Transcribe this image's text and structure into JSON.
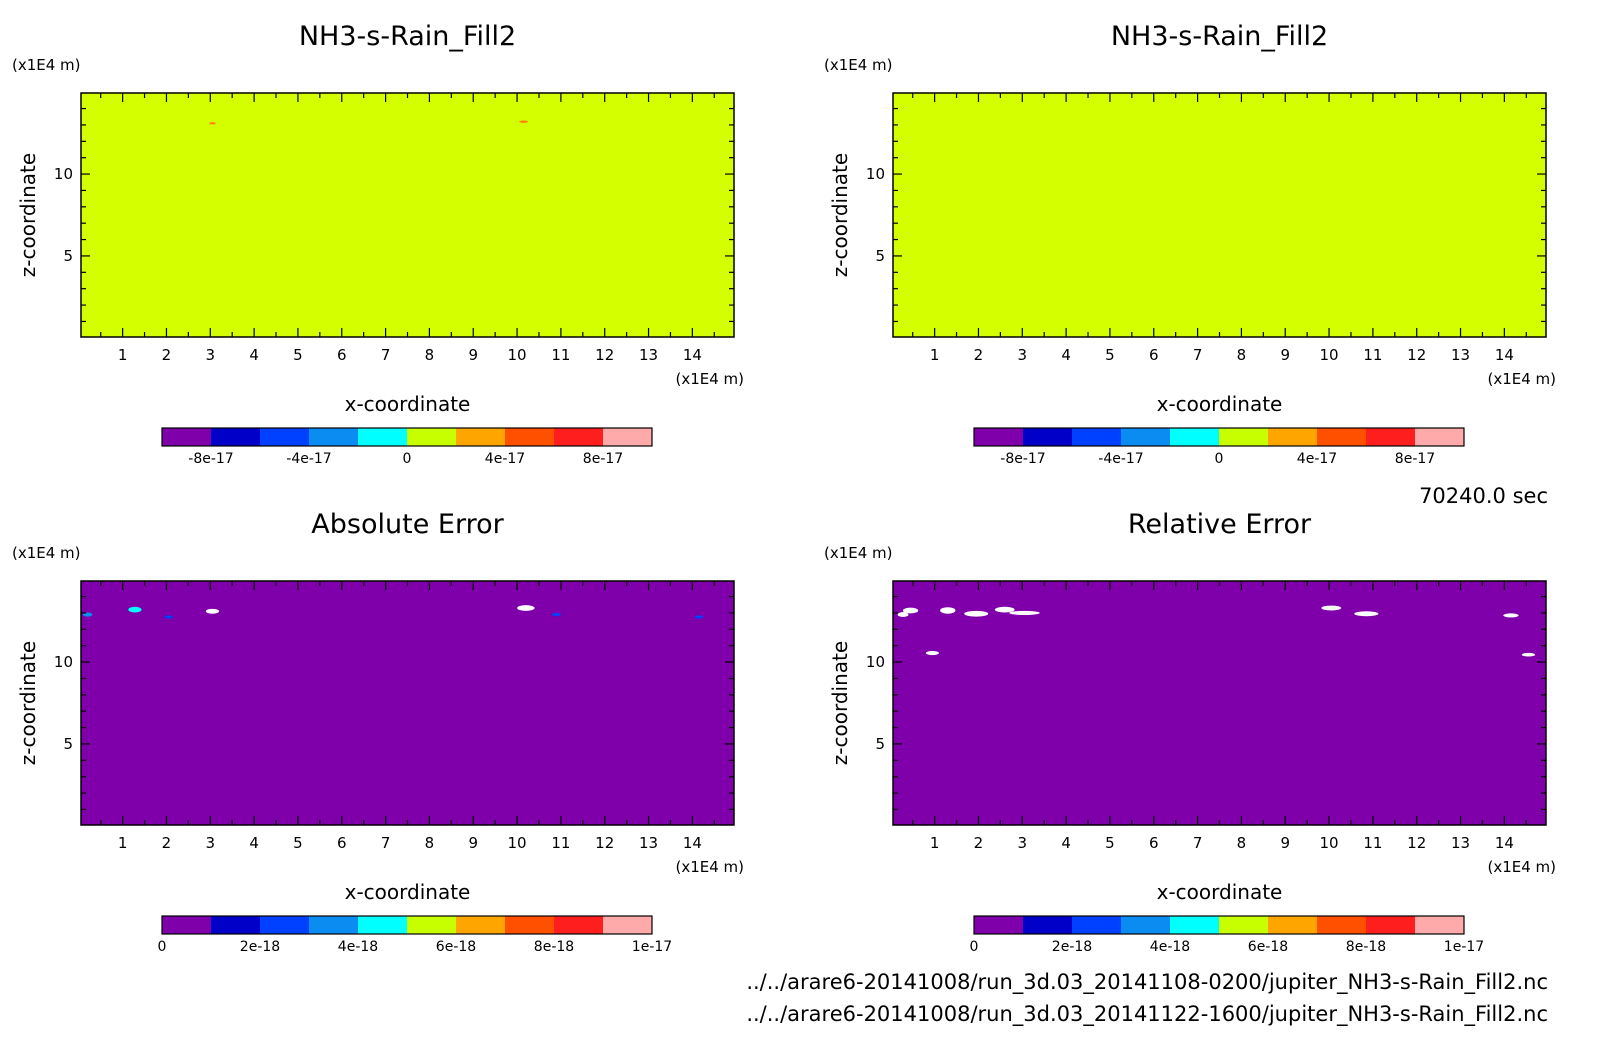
{
  "time_label": "70240.0 sec",
  "files": [
    "../../arare6-20141008/run_3d.03_20141108-0200/jupiter_NH3-s-Rain_Fill2.nc",
    "../../arare6-20141008/run_3d.03_20141122-1600/jupiter_NH3-s-Rain_Fill2.nc"
  ],
  "colors": {
    "colorbar": [
      "#7f00aa",
      "#0000c8",
      "#0040ff",
      "#0a8cf0",
      "#00ffff",
      "#c8ff00",
      "#ffa500",
      "#ff5000",
      "#ff1e1e",
      "#ffaaaa"
    ],
    "field_fill": "#d4ff00",
    "error_fill": "#7f00aa",
    "patch": "#ffffff"
  },
  "chart_data": [
    {
      "id": "p0",
      "type": "heatmap",
      "title": "NH3-s-Rain_Fill2",
      "xlabel": "x-coordinate",
      "ylabel": "z-coordinate",
      "xunit": "(x1E4 m)",
      "yunit": "(x1E4 m)",
      "xlim": [
        0.05,
        14.95
      ],
      "ylim": [
        0.05,
        14.95
      ],
      "xticks": [
        1,
        2,
        3,
        4,
        5,
        6,
        7,
        8,
        9,
        10,
        11,
        12,
        13,
        14
      ],
      "yticks": [
        5,
        10
      ],
      "fill": "field_fill",
      "colorbar": {
        "min": -1e-16,
        "max": 1e-16,
        "labels": [
          "-8e-17",
          "-4e-17",
          "0",
          "4e-17",
          "8e-17"
        ],
        "label_values": [
          -8e-17,
          -4e-17,
          0,
          4e-17,
          8e-17
        ]
      },
      "patches": [
        {
          "x": 3.05,
          "z": 13.1,
          "w": 0.15,
          "h": 0.06,
          "color": "#ff8000"
        },
        {
          "x": 10.15,
          "z": 13.2,
          "w": 0.2,
          "h": 0.06,
          "color": "#ff8000"
        }
      ]
    },
    {
      "id": "p1",
      "type": "heatmap",
      "title": "NH3-s-Rain_Fill2",
      "xlabel": "x-coordinate",
      "ylabel": "z-coordinate",
      "xunit": "(x1E4 m)",
      "yunit": "(x1E4 m)",
      "xlim": [
        0.05,
        14.95
      ],
      "ylim": [
        0.05,
        14.95
      ],
      "xticks": [
        1,
        2,
        3,
        4,
        5,
        6,
        7,
        8,
        9,
        10,
        11,
        12,
        13,
        14
      ],
      "yticks": [
        5,
        10
      ],
      "fill": "field_fill",
      "colorbar": {
        "min": -1e-16,
        "max": 1e-16,
        "labels": [
          "-8e-17",
          "-4e-17",
          "0",
          "4e-17",
          "8e-17"
        ],
        "label_values": [
          -8e-17,
          -4e-17,
          0,
          4e-17,
          8e-17
        ]
      },
      "patches": []
    },
    {
      "id": "p2",
      "type": "heatmap",
      "title": "Absolute Error",
      "xlabel": "x-coordinate",
      "ylabel": "z-coordinate",
      "xunit": "(x1E4 m)",
      "yunit": "(x1E4 m)",
      "xlim": [
        0.05,
        14.95
      ],
      "ylim": [
        0.05,
        14.95
      ],
      "xticks": [
        1,
        2,
        3,
        4,
        5,
        6,
        7,
        8,
        9,
        10,
        11,
        12,
        13,
        14
      ],
      "yticks": [
        5,
        10
      ],
      "fill": "error_fill",
      "colorbar": {
        "min": 0,
        "max": 1e-17,
        "labels": [
          "0",
          "2e-18",
          "4e-18",
          "6e-18",
          "8e-18",
          "1e-17"
        ],
        "label_values": [
          0,
          2e-18,
          4e-18,
          6e-18,
          8e-18,
          1e-17
        ]
      },
      "patches": [
        {
          "x": 0.2,
          "z": 12.9,
          "w": 0.22,
          "h": 0.25,
          "color": "#0a8cf0"
        },
        {
          "x": 1.28,
          "z": 13.2,
          "w": 0.3,
          "h": 0.35,
          "color": "#00ffff"
        },
        {
          "x": 2.05,
          "z": 12.75,
          "w": 0.2,
          "h": 0.2,
          "color": "#0040ff"
        },
        {
          "x": 3.05,
          "z": 13.1,
          "w": 0.3,
          "h": 0.3,
          "color": "#ffffff"
        },
        {
          "x": 10.2,
          "z": 13.3,
          "w": 0.4,
          "h": 0.35,
          "color": "#ffffff"
        },
        {
          "x": 10.9,
          "z": 12.9,
          "w": 0.2,
          "h": 0.2,
          "color": "#0040ff"
        },
        {
          "x": 14.15,
          "z": 12.75,
          "w": 0.2,
          "h": 0.2,
          "color": "#0040ff"
        }
      ]
    },
    {
      "id": "p3",
      "type": "heatmap",
      "title": "Relative Error",
      "xlabel": "x-coordinate",
      "ylabel": "z-coordinate",
      "xunit": "(x1E4 m)",
      "yunit": "(x1E4 m)",
      "xlim": [
        0.05,
        14.95
      ],
      "ylim": [
        0.05,
        14.95
      ],
      "xticks": [
        1,
        2,
        3,
        4,
        5,
        6,
        7,
        8,
        9,
        10,
        11,
        12,
        13,
        14
      ],
      "yticks": [
        5,
        10
      ],
      "fill": "error_fill",
      "colorbar": {
        "min": 0,
        "max": 1e-17,
        "labels": [
          "0",
          "2e-18",
          "4e-18",
          "6e-18",
          "8e-18",
          "1e-17"
        ],
        "label_values": [
          0,
          2e-18,
          4e-18,
          6e-18,
          8e-18,
          1e-17
        ]
      },
      "patches": [
        {
          "x": 0.28,
          "z": 12.9,
          "w": 0.25,
          "h": 0.3,
          "color": "#ffffff"
        },
        {
          "x": 0.45,
          "z": 13.15,
          "w": 0.35,
          "h": 0.35,
          "color": "#ffffff"
        },
        {
          "x": 1.3,
          "z": 13.15,
          "w": 0.35,
          "h": 0.4,
          "color": "#ffffff"
        },
        {
          "x": 1.95,
          "z": 12.95,
          "w": 0.55,
          "h": 0.35,
          "color": "#ffffff"
        },
        {
          "x": 2.6,
          "z": 13.2,
          "w": 0.45,
          "h": 0.35,
          "color": "#ffffff"
        },
        {
          "x": 3.05,
          "z": 13.0,
          "w": 0.7,
          "h": 0.25,
          "color": "#ffffff"
        },
        {
          "x": 0.95,
          "z": 10.55,
          "w": 0.3,
          "h": 0.25,
          "color": "#ffffff"
        },
        {
          "x": 10.05,
          "z": 13.3,
          "w": 0.45,
          "h": 0.3,
          "color": "#ffffff"
        },
        {
          "x": 10.85,
          "z": 12.95,
          "w": 0.55,
          "h": 0.3,
          "color": "#ffffff"
        },
        {
          "x": 14.15,
          "z": 12.85,
          "w": 0.35,
          "h": 0.25,
          "color": "#ffffff"
        },
        {
          "x": 14.55,
          "z": 10.45,
          "w": 0.3,
          "h": 0.22,
          "color": "#ffffff"
        }
      ]
    }
  ]
}
